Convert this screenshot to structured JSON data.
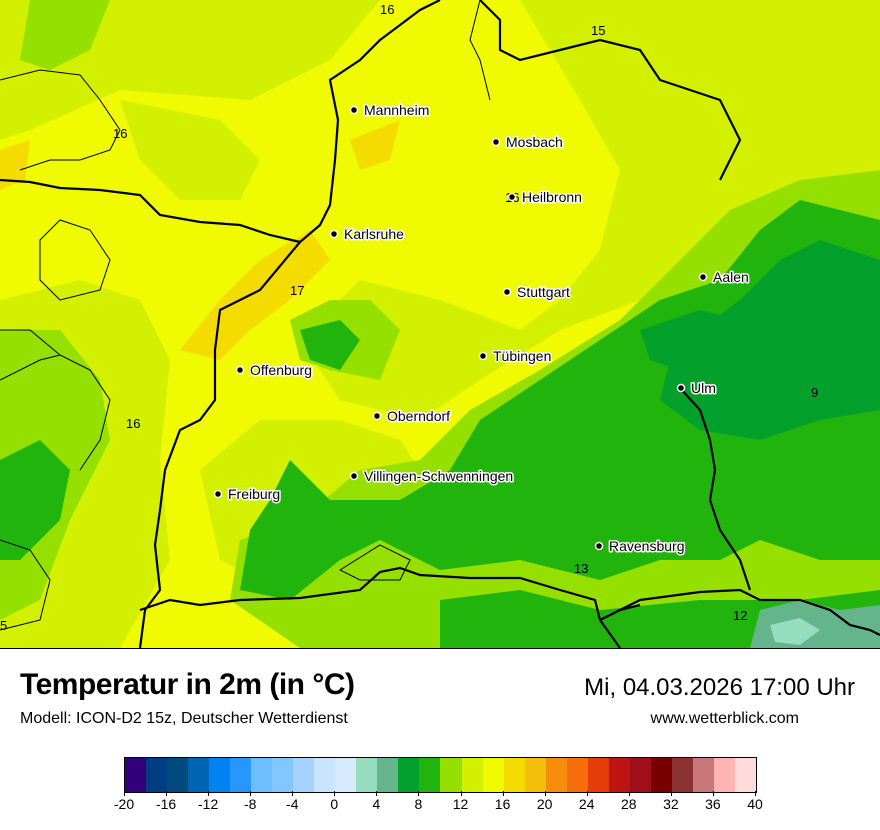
{
  "title": "Temperatur in 2m (in °C)",
  "model": "Modell: ICON-D2 15z, Deutscher Wetterdienst",
  "datetime": "Mi, 04.03.2026 17:00 Uhr",
  "website": "www.wetterblick.com",
  "cities": [
    {
      "name": "Mannheim"
    },
    {
      "name": "Mosbach"
    },
    {
      "name": "Heilbronn"
    },
    {
      "name": "Karlsruhe"
    },
    {
      "name": "Aalen"
    },
    {
      "name": "Stuttgart"
    },
    {
      "name": "Tübingen"
    },
    {
      "name": "Ulm"
    },
    {
      "name": "Offenburg"
    },
    {
      "name": "Oberndorf"
    },
    {
      "name": "Villingen-Schwenningen"
    },
    {
      "name": "Freiburg"
    },
    {
      "name": "Ravensburg"
    }
  ],
  "isolabels": [
    "16",
    "15",
    "16",
    "16",
    "17",
    "16",
    "9",
    "13",
    "12",
    "5"
  ],
  "legend": {
    "ticks": [
      "-20",
      "-16",
      "-12",
      "-8",
      "-4",
      "0",
      "4",
      "8",
      "12",
      "16",
      "20",
      "24",
      "28",
      "32",
      "36",
      "40"
    ],
    "colors": [
      "#320078",
      "#003c82",
      "#004a7c",
      "#0064b4",
      "#0082f0",
      "#2896ff",
      "#6ebeff",
      "#82c8ff",
      "#a5d2ff",
      "#c8e4ff",
      "#d7ebff",
      "#96dcbe",
      "#64b48c",
      "#04a02c",
      "#20b40c",
      "#96e000",
      "#d2f000",
      "#f0fa00",
      "#f5dc00",
      "#f5be0a",
      "#f58c0a",
      "#f56e0a",
      "#e63c0a",
      "#be1414",
      "#a00f19",
      "#780000",
      "#8c3232",
      "#c87878",
      "#ffb4b4",
      "#ffdcdc"
    ]
  }
}
